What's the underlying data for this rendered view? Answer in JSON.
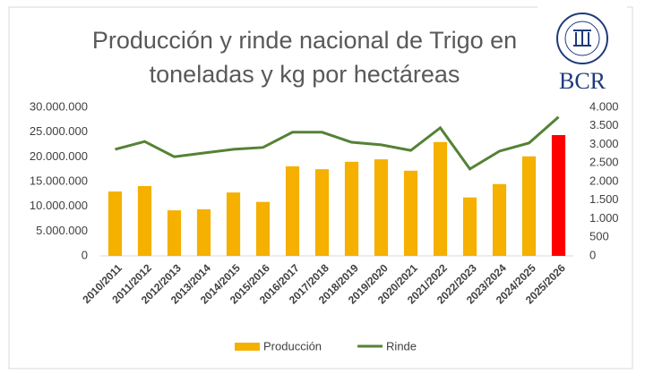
{
  "chart_data": {
    "type": "bar_line",
    "title": "Producción y rinde nacional de Trigo  en toneladas y kg por hectáreas",
    "logo_text": "BCR",
    "categories": [
      "2010/2011",
      "2011/2012",
      "2012/2013",
      "2013/2014",
      "2014/2015",
      "2015/2016",
      "2016/2017",
      "2017/2018",
      "2018/2019",
      "2019/2020",
      "2020/2021",
      "2021/2022",
      "2022/2023",
      "2023/2024",
      "2024/2025",
      "2025/2026"
    ],
    "series": [
      {
        "name": "Producción",
        "type": "bar",
        "axis": "y",
        "color": "#f5b000",
        "colors": [
          "#f5b000",
          "#f5b000",
          "#f5b000",
          "#f5b000",
          "#f5b000",
          "#f5b000",
          "#f5b000",
          "#f5b000",
          "#f5b000",
          "#f5b000",
          "#f5b000",
          "#f5b000",
          "#f5b000",
          "#f5b000",
          "#f5b000",
          "#ff0000"
        ],
        "values": [
          13000000,
          14100000,
          9200000,
          9400000,
          12800000,
          10900000,
          18100000,
          17500000,
          19000000,
          19500000,
          17200000,
          23000000,
          11800000,
          14500000,
          20100000,
          24400000
        ]
      },
      {
        "name": "Rinde",
        "type": "line",
        "axis": "y2",
        "color": "#548235",
        "values": [
          2870,
          3080,
          2670,
          2770,
          2870,
          2920,
          3330,
          3330,
          3060,
          2990,
          2840,
          3450,
          2340,
          2820,
          3040,
          3740
        ]
      }
    ],
    "ylim": [
      0,
      30000000
    ],
    "yticks": [
      {
        "value": 0,
        "label": "0"
      },
      {
        "value": 5000000,
        "label": "5.000.000"
      },
      {
        "value": 10000000,
        "label": "10.000.000"
      },
      {
        "value": 15000000,
        "label": "15.000.000"
      },
      {
        "value": 20000000,
        "label": "20.000.000"
      },
      {
        "value": 25000000,
        "label": "25.000.000"
      },
      {
        "value": 30000000,
        "label": "30.000.000"
      }
    ],
    "y2lim": [
      0,
      4000
    ],
    "y2ticks": [
      0,
      500,
      {
        "value": 1000,
        "label": "1.000"
      },
      {
        "value": 1500,
        "label": "1.500"
      },
      {
        "value": 2000,
        "label": "2.000"
      },
      {
        "value": 2500,
        "label": "2.500"
      },
      {
        "value": 3000,
        "label": "3.000"
      },
      {
        "value": 3500,
        "label": "3.500"
      },
      {
        "value": 4000,
        "label": "4.000"
      }
    ],
    "legend": "bottom"
  }
}
